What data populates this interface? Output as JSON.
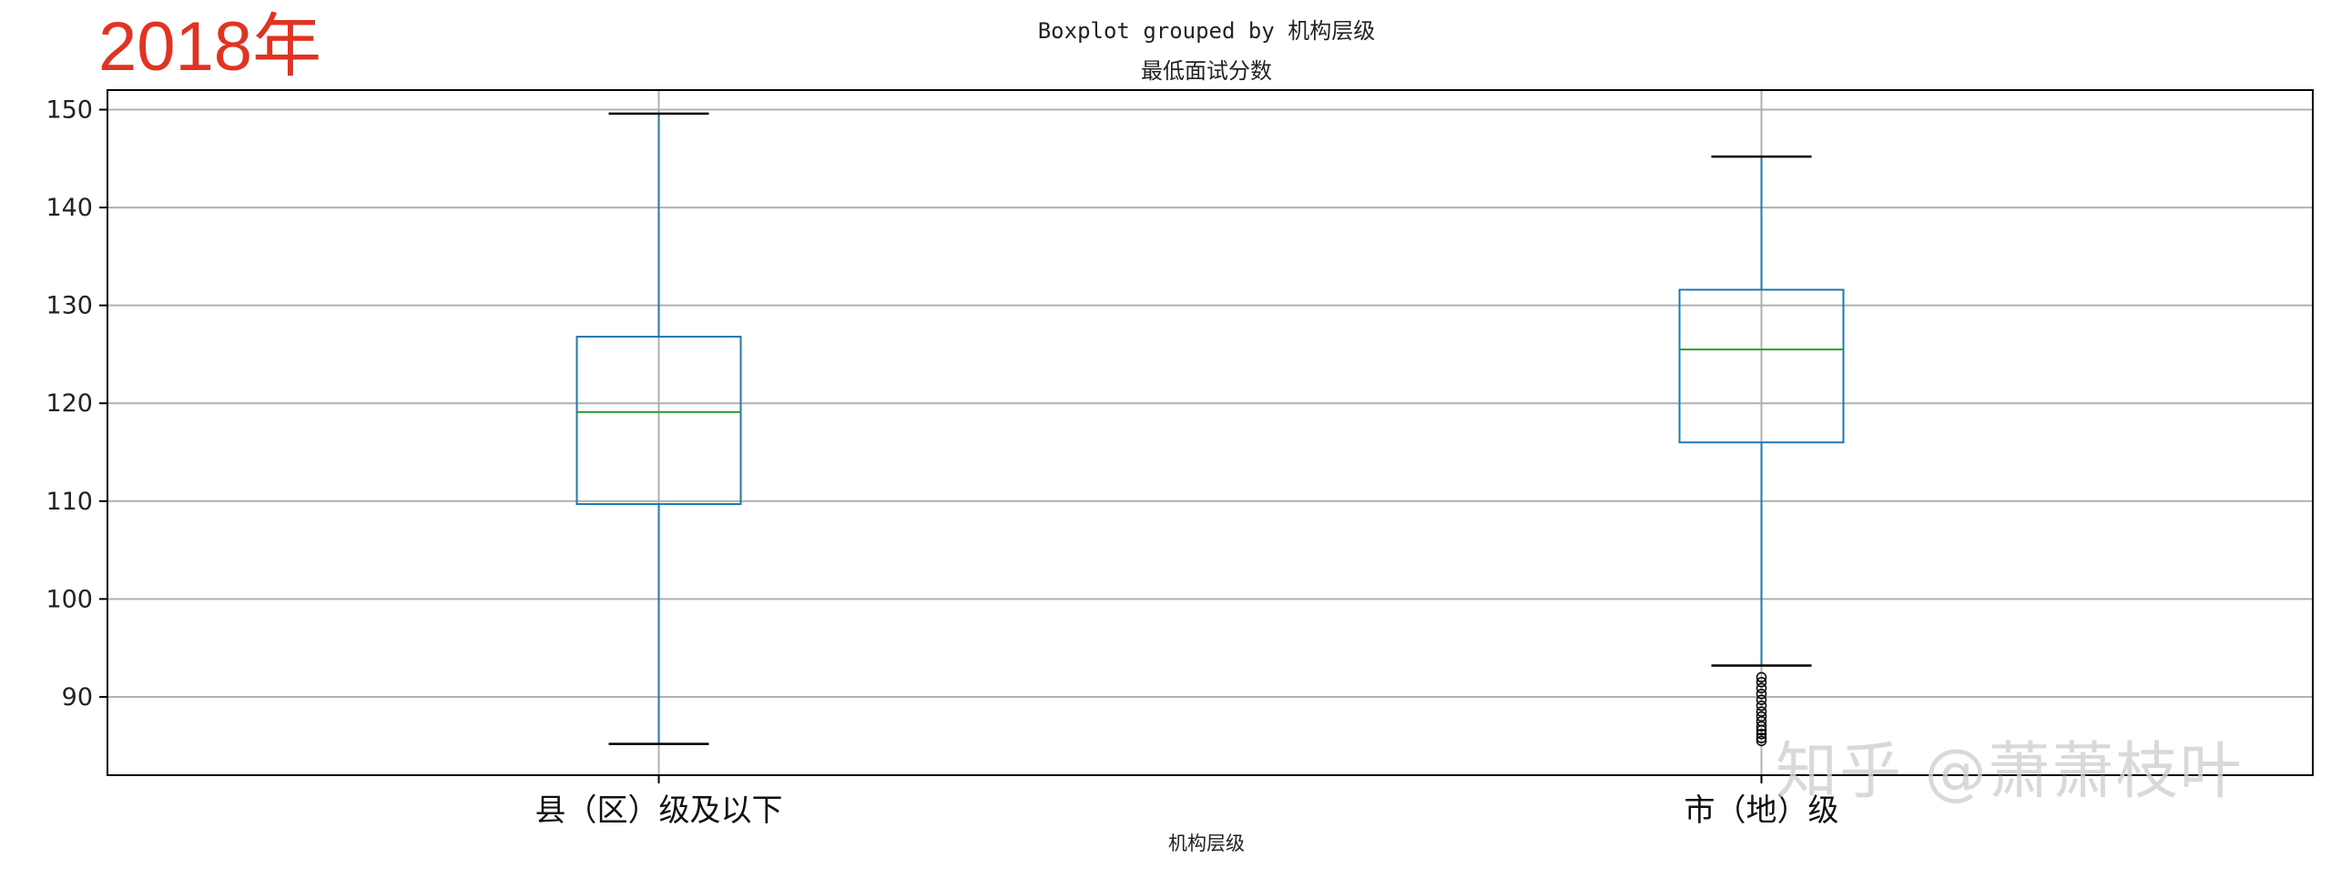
{
  "overlay": {
    "year_label": "2018年",
    "watermark": "知乎 @萧萧枝叶"
  },
  "colors": {
    "box": "#1f77b4",
    "median": "#2ca02c",
    "grid": "#b0b0b0",
    "axes": "#000000",
    "year_label": "#e23222"
  },
  "chart_data": {
    "type": "boxplot",
    "suptitle": "Boxplot grouped by 机构层级",
    "title": "最低面试分数",
    "xlabel": "机构层级",
    "ylabel": "",
    "ylim": [
      82,
      152
    ],
    "yticks": [
      90,
      100,
      110,
      120,
      130,
      140,
      150
    ],
    "grid": true,
    "categories": [
      "县（区）级及以下",
      "市（地）级"
    ],
    "boxes": [
      {
        "name": "县（区）级及以下",
        "whisker_low": 85.2,
        "q1": 109.7,
        "median": 119.1,
        "q3": 126.8,
        "whisker_high": 149.6,
        "outliers": []
      },
      {
        "name": "市（地）级",
        "whisker_low": 93.2,
        "q1": 116.0,
        "median": 125.5,
        "q3": 131.6,
        "whisker_high": 145.2,
        "outliers": [
          92.0,
          91.5,
          90.9,
          90.3,
          89.7,
          89.1,
          88.5,
          88.0,
          87.5,
          87.0,
          86.6,
          86.2,
          85.8,
          85.5
        ]
      }
    ]
  }
}
